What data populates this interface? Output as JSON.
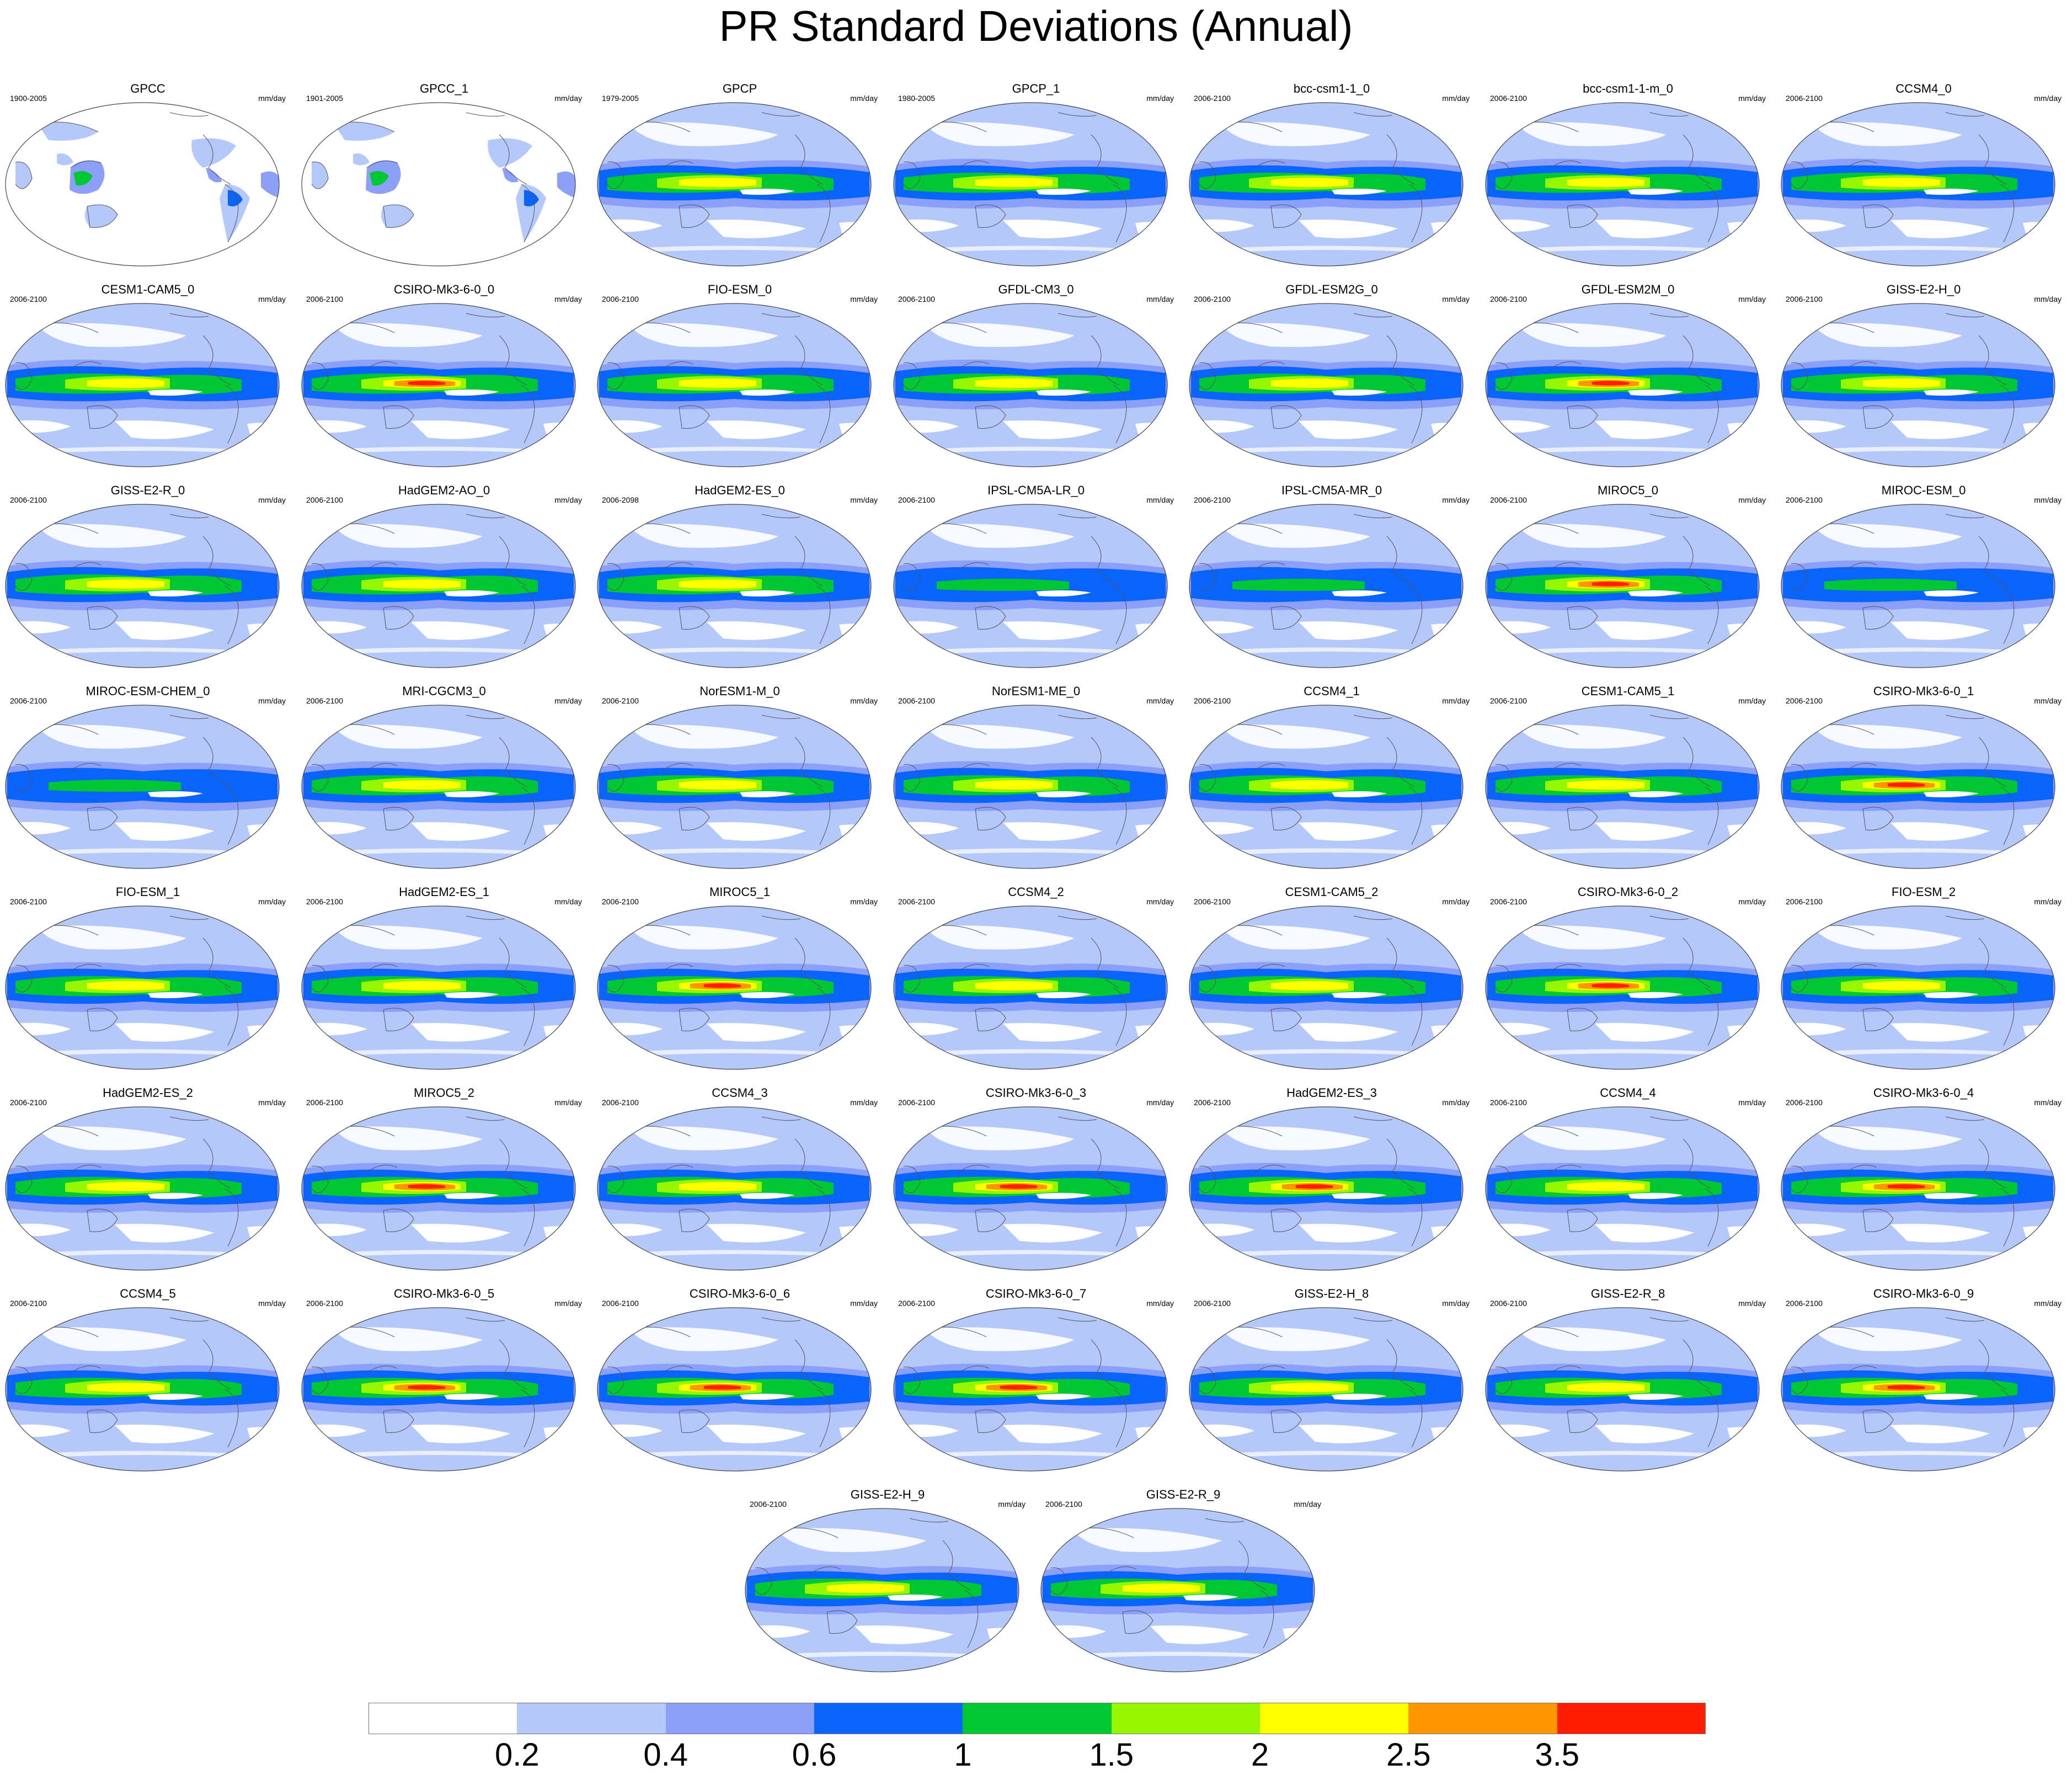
{
  "title": "PR Standard Deviations (Annual)",
  "units": "mm/day",
  "panels": [
    {
      "name": "GPCC",
      "period": "1900-2005",
      "type": "obs-land"
    },
    {
      "name": "GPCC_1",
      "period": "1901-2005",
      "type": "obs-land"
    },
    {
      "name": "GPCP",
      "period": "1979-2005",
      "type": "obs"
    },
    {
      "name": "GPCP_1",
      "period": "1980-2005",
      "type": "obs"
    },
    {
      "name": "bcc-csm1-1_0",
      "period": "2006-2100",
      "type": "model"
    },
    {
      "name": "bcc-csm1-1-m_0",
      "period": "2006-2100",
      "type": "model"
    },
    {
      "name": "CCSM4_0",
      "period": "2006-2100",
      "type": "model"
    },
    {
      "name": "CESM1-CAM5_0",
      "period": "2006-2100",
      "type": "model"
    },
    {
      "name": "CSIRO-Mk3-6-0_0",
      "period": "2006-2100",
      "type": "model-strong"
    },
    {
      "name": "FIO-ESM_0",
      "period": "2006-2100",
      "type": "model"
    },
    {
      "name": "GFDL-CM3_0",
      "period": "2006-2100",
      "type": "model"
    },
    {
      "name": "GFDL-ESM2G_0",
      "period": "2006-2100",
      "type": "model"
    },
    {
      "name": "GFDL-ESM2M_0",
      "period": "2006-2100",
      "type": "model-strong"
    },
    {
      "name": "GISS-E2-H_0",
      "period": "2006-2100",
      "type": "model"
    },
    {
      "name": "GISS-E2-R_0",
      "period": "2006-2100",
      "type": "model"
    },
    {
      "name": "HadGEM2-AO_0",
      "period": "2006-2100",
      "type": "model"
    },
    {
      "name": "HadGEM2-ES_0",
      "period": "2006-2098",
      "type": "model"
    },
    {
      "name": "IPSL-CM5A-LR_0",
      "period": "2006-2100",
      "type": "model-weak"
    },
    {
      "name": "IPSL-CM5A-MR_0",
      "period": "2006-2100",
      "type": "model-weak"
    },
    {
      "name": "MIROC5_0",
      "period": "2006-2100",
      "type": "model-strong"
    },
    {
      "name": "MIROC-ESM_0",
      "period": "2006-2100",
      "type": "model-weak"
    },
    {
      "name": "MIROC-ESM-CHEM_0",
      "period": "2006-2100",
      "type": "model-weak"
    },
    {
      "name": "MRI-CGCM3_0",
      "period": "2006-2100",
      "type": "model"
    },
    {
      "name": "NorESM1-M_0",
      "period": "2006-2100",
      "type": "model"
    },
    {
      "name": "NorESM1-ME_0",
      "period": "2006-2100",
      "type": "model"
    },
    {
      "name": "CCSM4_1",
      "period": "2006-2100",
      "type": "model"
    },
    {
      "name": "CESM1-CAM5_1",
      "period": "2006-2100",
      "type": "model"
    },
    {
      "name": "CSIRO-Mk3-6-0_1",
      "period": "2006-2100",
      "type": "model-strong"
    },
    {
      "name": "FIO-ESM_1",
      "period": "2006-2100",
      "type": "model"
    },
    {
      "name": "HadGEM2-ES_1",
      "period": "2006-2100",
      "type": "model"
    },
    {
      "name": "MIROC5_1",
      "period": "2006-2100",
      "type": "model-strong"
    },
    {
      "name": "CCSM4_2",
      "period": "2006-2100",
      "type": "model"
    },
    {
      "name": "CESM1-CAM5_2",
      "period": "2006-2100",
      "type": "model"
    },
    {
      "name": "CSIRO-Mk3-6-0_2",
      "period": "2006-2100",
      "type": "model-strong"
    },
    {
      "name": "FIO-ESM_2",
      "period": "2006-2100",
      "type": "model"
    },
    {
      "name": "HadGEM2-ES_2",
      "period": "2006-2100",
      "type": "model"
    },
    {
      "name": "MIROC5_2",
      "period": "2006-2100",
      "type": "model-strong"
    },
    {
      "name": "CCSM4_3",
      "period": "2006-2100",
      "type": "model"
    },
    {
      "name": "CSIRO-Mk3-6-0_3",
      "period": "2006-2100",
      "type": "model-strong"
    },
    {
      "name": "HadGEM2-ES_3",
      "period": "2006-2100",
      "type": "model-strong"
    },
    {
      "name": "CCSM4_4",
      "period": "2006-2100",
      "type": "model"
    },
    {
      "name": "CSIRO-Mk3-6-0_4",
      "period": "2006-2100",
      "type": "model-strong"
    },
    {
      "name": "CCSM4_5",
      "period": "2006-2100",
      "type": "model"
    },
    {
      "name": "CSIRO-Mk3-6-0_5",
      "period": "2006-2100",
      "type": "model-strong"
    },
    {
      "name": "CSIRO-Mk3-6-0_6",
      "period": "2006-2100",
      "type": "model-strong"
    },
    {
      "name": "CSIRO-Mk3-6-0_7",
      "period": "2006-2100",
      "type": "model-strong"
    },
    {
      "name": "GISS-E2-H_8",
      "period": "2006-2100",
      "type": "model"
    },
    {
      "name": "GISS-E2-R_8",
      "period": "2006-2100",
      "type": "model"
    },
    {
      "name": "CSIRO-Mk3-6-0_9",
      "period": "2006-2100",
      "type": "model-strong"
    },
    {
      "name": "GISS-E2-H_9",
      "period": "2006-2100",
      "type": "model"
    },
    {
      "name": "GISS-E2-R_9",
      "period": "2006-2100",
      "type": "model"
    }
  ],
  "colorbar": {
    "colors": [
      "#ffffff",
      "#b4c8fa",
      "#8ca0fa",
      "#0a64fa",
      "#00c832",
      "#96f500",
      "#ffff00",
      "#ff9600",
      "#ff1e00"
    ],
    "labels": [
      "0.2",
      "0.4",
      "0.6",
      "1",
      "1.5",
      "2",
      "2.5",
      "3.5"
    ]
  }
}
